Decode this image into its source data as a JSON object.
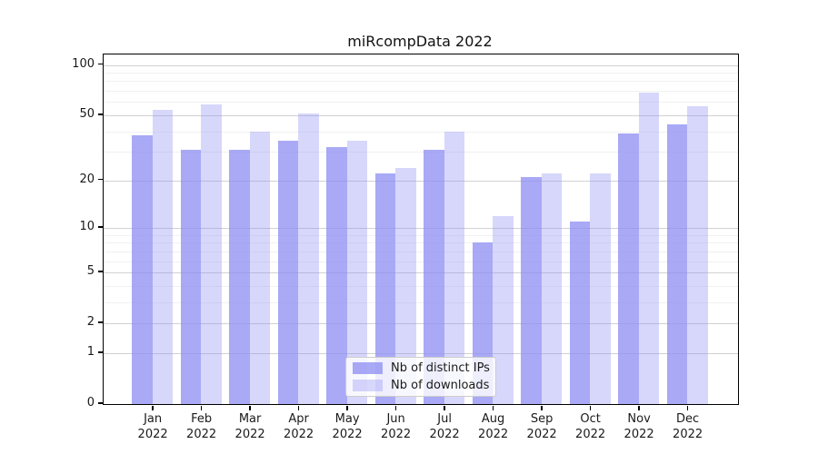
{
  "chart_data": {
    "type": "bar",
    "title": "miRcompData 2022",
    "categories": [
      "Jan 2022",
      "Feb 2022",
      "Mar 2022",
      "Apr 2022",
      "May 2022",
      "Jun 2022",
      "Jul 2022",
      "Aug 2022",
      "Sep 2022",
      "Oct 2022",
      "Nov 2022",
      "Dec 2022"
    ],
    "series": [
      {
        "name": "Nb of distinct IPs",
        "values": [
          38,
          31,
          31,
          35,
          32,
          22,
          31,
          8,
          21,
          11,
          39,
          44
        ],
        "color": "#8c8cf3",
        "alpha": 0.75
      },
      {
        "name": "Nb of downloads",
        "values": [
          54,
          58,
          40,
          51,
          35,
          24,
          40,
          12,
          22,
          22,
          68,
          57
        ],
        "color": "#8c8cf3",
        "alpha": 0.35
      }
    ],
    "yscale": "log1p",
    "yticks": [
      0,
      1,
      2,
      5,
      10,
      20,
      50,
      100
    ],
    "minor_gridlines": [
      3,
      4,
      6,
      7,
      8,
      9,
      30,
      40,
      60,
      70,
      80,
      90
    ],
    "ylim": [
      0,
      116
    ],
    "grid": true,
    "legend_position": "lower center",
    "colors": {
      "axis": "#000000",
      "text": "#1a1a1a",
      "major_grid": "#cccccc",
      "minor_grid": "#ebebeb"
    }
  }
}
